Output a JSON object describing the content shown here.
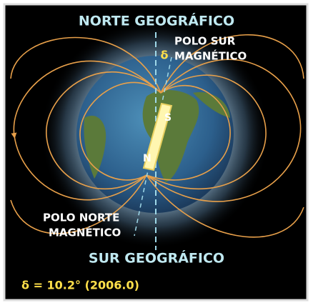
{
  "labels": {
    "north_geo": "NORTE GEOGRÁFICO",
    "south_pole_mag": [
      "POLO SUR",
      "MAGNÉTICO"
    ],
    "delta_symbol": "δ",
    "magnet_s": "S",
    "magnet_n": "N",
    "north_pole_mag": [
      "POLO NORTE",
      "MAGNÉTICO"
    ],
    "south_geo": "SUR GEOGRÁFICO",
    "declination": "δ = 10.2° (2006.0)"
  }
}
